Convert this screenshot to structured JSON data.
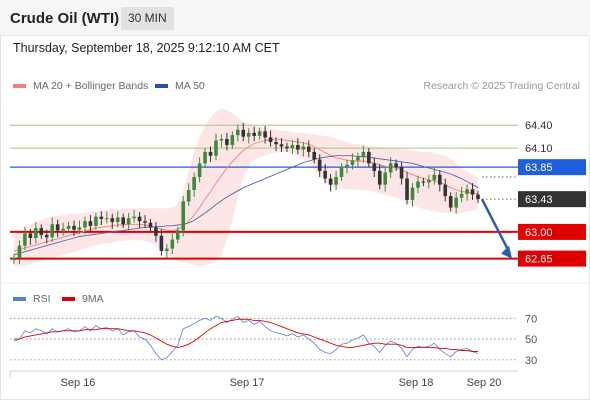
{
  "header": {
    "title": "Crude Oil (WTI)",
    "timeframe": "30 MIN"
  },
  "timestamp": "Thursday, September 18, 2025 9:12:10 AM CET",
  "legend": {
    "bollinger": {
      "label": "MA 20 + Bollinger Bands",
      "color": "#f08080"
    },
    "ma50": {
      "label": "MA 50",
      "color": "#2e4f9e"
    },
    "credit": "Research © 2025 Trading Central"
  },
  "rsi_legend": {
    "rsi": {
      "label": "RSI",
      "color": "#5b7fd6"
    },
    "ma9": {
      "label": "9MA",
      "color": "#e00000"
    }
  },
  "colors": {
    "up": "#3c8a3c",
    "down": "#333333",
    "resistance": "#9fcc7a",
    "pivot": "#1f5fdb",
    "support": "#e00000",
    "last": "#333333",
    "arrow": "#2a5db0"
  },
  "chart_data": [
    {
      "type": "candlestick",
      "ylim": [
        62.5,
        64.6
      ],
      "x_ticks": [
        "Sep 16",
        "Sep 17",
        "Sep 18",
        "Sep 20"
      ],
      "levels": [
        {
          "value": 64.4,
          "label": "64.40",
          "kind": "resistance"
        },
        {
          "value": 64.1,
          "label": "64.10",
          "kind": "resistance"
        },
        {
          "value": 63.85,
          "label": "63.85",
          "kind": "pivot"
        },
        {
          "value": 63.0,
          "label": "63.00",
          "kind": "support"
        },
        {
          "value": 62.65,
          "label": "62.65",
          "kind": "support"
        }
      ],
      "last_price": {
        "value": 63.43,
        "label": "63.43"
      },
      "close": [
        62.66,
        62.82,
        62.98,
        62.92,
        63.05,
        62.96,
        62.93,
        63.1,
        63.02,
        63.04,
        63.08,
        63.03,
        63.06,
        63.14,
        63.08,
        63.2,
        63.17,
        63.18,
        63.13,
        63.19,
        63.1,
        63.18,
        63.2,
        63.14,
        63.12,
        63.06,
        62.95,
        62.75,
        62.78,
        62.9,
        63.02,
        63.4,
        63.55,
        63.72,
        63.9,
        64.05,
        64.0,
        64.2,
        64.22,
        64.14,
        64.27,
        64.34,
        64.25,
        64.3,
        64.26,
        64.32,
        64.24,
        64.18,
        64.15,
        64.12,
        64.1,
        64.14,
        64.08,
        64.12,
        64.05,
        63.95,
        63.8,
        63.7,
        63.62,
        63.72,
        63.85,
        63.88,
        63.94,
        63.98,
        64.05,
        63.9,
        63.8,
        63.62,
        63.78,
        63.9,
        63.85,
        63.7,
        63.42,
        63.58,
        63.66,
        63.65,
        63.68,
        63.75,
        63.62,
        63.47,
        63.32,
        63.45,
        63.5,
        63.56,
        63.49,
        63.43
      ],
      "ma20": [
        62.75,
        62.77,
        62.79,
        62.81,
        62.83,
        62.85,
        62.87,
        62.89,
        62.91,
        62.93,
        62.95,
        62.97,
        62.99,
        63.01,
        63.03,
        63.05,
        63.06,
        63.07,
        63.08,
        63.09,
        63.09,
        63.1,
        63.1,
        63.1,
        63.09,
        63.08,
        63.06,
        63.04,
        63.02,
        63.02,
        63.03,
        63.08,
        63.14,
        63.22,
        63.32,
        63.43,
        63.53,
        63.64,
        63.74,
        63.84,
        63.92,
        64.0,
        64.07,
        64.12,
        64.16,
        64.18,
        64.2,
        64.21,
        64.22,
        64.21,
        64.2,
        64.19,
        64.18,
        64.17,
        64.15,
        64.12,
        64.08,
        64.04,
        64.0,
        63.97,
        63.96,
        63.94,
        63.93,
        63.93,
        63.93,
        63.92,
        63.9,
        63.88,
        63.86,
        63.85,
        63.84,
        63.82,
        63.78,
        63.75,
        63.72,
        63.7,
        63.68,
        63.67,
        63.65,
        63.62,
        63.58,
        63.55,
        63.53,
        63.52,
        63.51,
        63.5
      ],
      "bb_upper": [
        62.95,
        63.0,
        63.05,
        63.1,
        63.13,
        63.16,
        63.18,
        63.2,
        63.21,
        63.22,
        63.23,
        63.24,
        63.24,
        63.25,
        63.26,
        63.27,
        63.28,
        63.29,
        63.3,
        63.3,
        63.3,
        63.31,
        63.31,
        63.31,
        63.31,
        63.31,
        63.31,
        63.31,
        63.31,
        63.32,
        63.36,
        63.55,
        63.8,
        64.05,
        64.25,
        64.4,
        64.5,
        64.58,
        64.62,
        64.6,
        64.56,
        64.5,
        64.45,
        64.42,
        64.4,
        64.38,
        64.36,
        64.35,
        64.34,
        64.33,
        64.32,
        64.31,
        64.3,
        64.3,
        64.29,
        64.28,
        64.27,
        64.26,
        64.25,
        64.23,
        64.2,
        64.18,
        64.16,
        64.15,
        64.14,
        64.13,
        64.12,
        64.11,
        64.1,
        64.1,
        64.09,
        64.09,
        64.08,
        64.07,
        64.06,
        64.05,
        64.05,
        64.04,
        64.02,
        64.0,
        63.96,
        63.9,
        63.84,
        63.79,
        63.75,
        63.71
      ],
      "bb_lower": [
        62.55,
        62.55,
        62.56,
        62.58,
        62.6,
        62.62,
        62.64,
        62.66,
        62.68,
        62.7,
        62.72,
        62.74,
        62.76,
        62.78,
        62.8,
        62.82,
        62.84,
        62.85,
        62.86,
        62.87,
        62.88,
        62.89,
        62.89,
        62.89,
        62.88,
        62.86,
        62.82,
        62.77,
        62.72,
        62.66,
        62.62,
        62.6,
        62.58,
        62.56,
        62.55,
        62.56,
        62.58,
        62.6,
        62.7,
        62.9,
        63.15,
        63.45,
        63.7,
        63.85,
        63.95,
        63.98,
        64.0,
        64.03,
        64.04,
        64.05,
        64.05,
        64.03,
        64.0,
        63.95,
        63.9,
        63.82,
        63.74,
        63.66,
        63.6,
        63.58,
        63.57,
        63.56,
        63.56,
        63.55,
        63.55,
        63.54,
        63.53,
        63.5,
        63.48,
        63.47,
        63.45,
        63.42,
        63.38,
        63.35,
        63.32,
        63.3,
        63.28,
        63.27,
        63.26,
        63.25,
        63.25,
        63.24,
        63.25,
        63.27,
        63.28,
        63.3
      ],
      "ma50": [
        62.7,
        62.72,
        62.74,
        62.76,
        62.78,
        62.8,
        62.82,
        62.84,
        62.86,
        62.88,
        62.9,
        62.92,
        62.94,
        62.95,
        62.96,
        62.97,
        62.98,
        62.99,
        63.0,
        63.01,
        63.02,
        63.03,
        63.04,
        63.05,
        63.06,
        63.06,
        63.07,
        63.07,
        63.08,
        63.08,
        63.09,
        63.1,
        63.12,
        63.15,
        63.2,
        63.25,
        63.3,
        63.36,
        63.41,
        63.46,
        63.5,
        63.54,
        63.58,
        63.61,
        63.64,
        63.67,
        63.7,
        63.73,
        63.76,
        63.79,
        63.82,
        63.85,
        63.88,
        63.91,
        63.93,
        63.95,
        63.97,
        63.98,
        63.99,
        64.0,
        64.0,
        64.0,
        64.0,
        63.99,
        63.99,
        63.98,
        63.97,
        63.96,
        63.95,
        63.94,
        63.93,
        63.92,
        63.91,
        63.9,
        63.88,
        63.86,
        63.84,
        63.82,
        63.8,
        63.78,
        63.76,
        63.73,
        63.7,
        63.66,
        63.62,
        63.58
      ]
    },
    {
      "type": "line",
      "name": "RSI",
      "ylim": [
        25,
        78
      ],
      "y_ticks": [
        {
          "value": 70,
          "label": "70"
        },
        {
          "value": 50,
          "label": "50"
        },
        {
          "value": 30,
          "label": "30"
        }
      ],
      "rsi": [
        48,
        50,
        58,
        56,
        60,
        58,
        55,
        60,
        57,
        58,
        60,
        57,
        58,
        62,
        58,
        63,
        60,
        61,
        58,
        60,
        54,
        57,
        58,
        52,
        50,
        44,
        36,
        30,
        32,
        38,
        44,
        60,
        62,
        65,
        68,
        70,
        68,
        72,
        70,
        66,
        69,
        72,
        66,
        68,
        64,
        67,
        62,
        58,
        56,
        55,
        53,
        55,
        52,
        54,
        50,
        46,
        40,
        37,
        36,
        40,
        45,
        46,
        49,
        51,
        54,
        46,
        43,
        37,
        44,
        48,
        46,
        41,
        33,
        40,
        43,
        42,
        43,
        46,
        40,
        36,
        33,
        38,
        40,
        41,
        38,
        36
      ],
      "ma9": [
        50,
        50,
        52,
        53,
        54,
        55,
        56,
        57,
        57,
        58,
        58,
        58,
        58,
        59,
        59,
        59,
        60,
        60,
        60,
        60,
        59,
        58,
        58,
        57,
        56,
        54,
        51,
        48,
        45,
        43,
        42,
        43,
        45,
        48,
        52,
        56,
        60,
        63,
        66,
        67,
        68,
        69,
        69,
        69,
        68,
        68,
        67,
        66,
        64,
        62,
        60,
        58,
        56,
        55,
        54,
        52,
        50,
        48,
        46,
        44,
        43,
        42,
        42,
        43,
        44,
        45,
        46,
        46,
        45,
        45,
        45,
        44,
        42,
        42,
        42,
        42,
        42,
        42,
        41,
        41,
        40,
        40,
        39,
        39,
        38,
        38
      ]
    }
  ]
}
